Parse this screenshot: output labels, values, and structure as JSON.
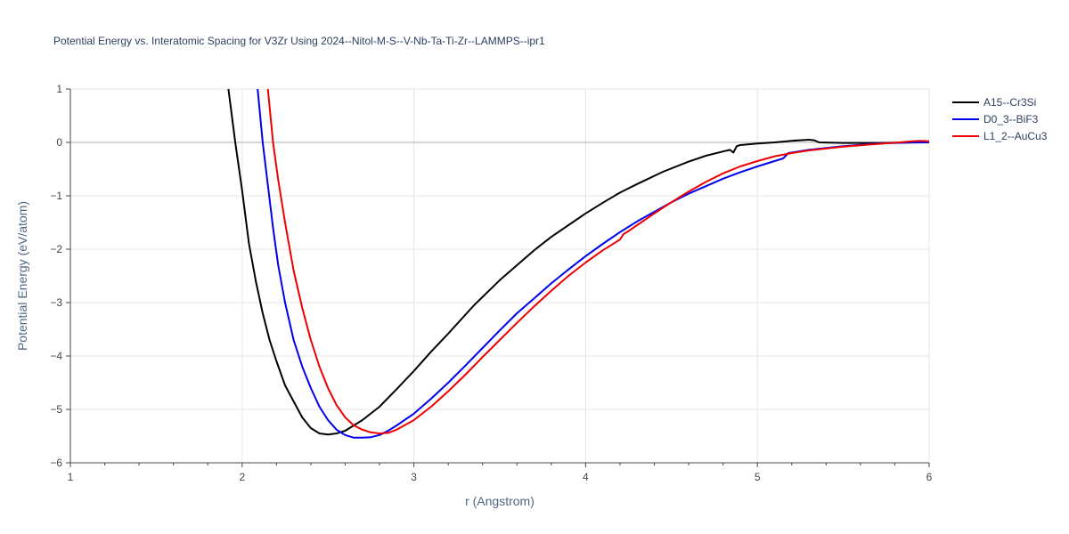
{
  "chart_data": {
    "type": "line",
    "title": "Potential Energy vs. Interatomic Spacing for V3Zr Using 2024--Nitol-M-S--V-Nb-Ta-Ti-Zr--LAMMPS--ipr1",
    "xlabel": "r (Angstrom)",
    "ylabel": "Potential Energy (eV/atom)",
    "xlim": [
      1,
      6
    ],
    "ylim": [
      -6,
      1
    ],
    "xticks": [
      1,
      2,
      3,
      4,
      5,
      6
    ],
    "xtick_labels": [
      "1",
      "2",
      "3",
      "4",
      "5",
      "6"
    ],
    "yticks": [
      -6,
      -5,
      -4,
      -3,
      -2,
      -1,
      0,
      1
    ],
    "ytick_labels": [
      "−6",
      "−5",
      "−4",
      "−3",
      "−2",
      "−1",
      "0",
      "1"
    ],
    "grid": true,
    "legend_position": "top-right",
    "series": [
      {
        "name": "A15--Cr3Si",
        "color": "#000000",
        "x": [
          1.92,
          1.96,
          2.0,
          2.04,
          2.08,
          2.12,
          2.16,
          2.2,
          2.25,
          2.3,
          2.35,
          2.4,
          2.45,
          2.5,
          2.55,
          2.6,
          2.7,
          2.8,
          2.9,
          3.0,
          3.1,
          3.2,
          3.35,
          3.5,
          3.6,
          3.7,
          3.8,
          3.9,
          4.0,
          4.1,
          4.2,
          4.3,
          4.45,
          4.6,
          4.7,
          4.8,
          4.84,
          4.86,
          4.88,
          4.9,
          5.0,
          5.1,
          5.2,
          5.3,
          5.33,
          5.36,
          5.5,
          5.7,
          6.0
        ],
        "y": [
          1.0,
          0.0,
          -0.9,
          -1.9,
          -2.6,
          -3.2,
          -3.7,
          -4.1,
          -4.55,
          -4.85,
          -5.15,
          -5.35,
          -5.45,
          -5.47,
          -5.45,
          -5.4,
          -5.2,
          -4.95,
          -4.62,
          -4.28,
          -3.92,
          -3.58,
          -3.05,
          -2.58,
          -2.3,
          -2.02,
          -1.77,
          -1.55,
          -1.33,
          -1.13,
          -0.94,
          -0.78,
          -0.55,
          -0.36,
          -0.25,
          -0.17,
          -0.14,
          -0.19,
          -0.07,
          -0.05,
          -0.02,
          0.0,
          0.03,
          0.05,
          0.04,
          0.0,
          -0.01,
          -0.01,
          0.0
        ]
      },
      {
        "name": "D0_3--BiF3",
        "color": "#0000ee",
        "x": [
          2.09,
          2.12,
          2.15,
          2.18,
          2.21,
          2.25,
          2.3,
          2.35,
          2.4,
          2.45,
          2.5,
          2.55,
          2.6,
          2.65,
          2.7,
          2.75,
          2.8,
          2.85,
          2.9,
          3.0,
          3.1,
          3.2,
          3.3,
          3.4,
          3.5,
          3.6,
          3.7,
          3.8,
          3.9,
          4.0,
          4.1,
          4.2,
          4.3,
          4.4,
          4.5,
          4.6,
          4.7,
          4.8,
          4.9,
          5.0,
          5.1,
          5.15,
          5.18,
          5.3,
          5.5,
          5.7,
          5.9,
          6.0
        ],
        "y": [
          1.0,
          0.0,
          -0.8,
          -1.6,
          -2.3,
          -3.0,
          -3.7,
          -4.2,
          -4.6,
          -4.95,
          -5.2,
          -5.38,
          -5.48,
          -5.53,
          -5.53,
          -5.52,
          -5.48,
          -5.4,
          -5.3,
          -5.08,
          -4.8,
          -4.5,
          -4.18,
          -3.85,
          -3.52,
          -3.2,
          -2.92,
          -2.64,
          -2.38,
          -2.13,
          -1.9,
          -1.68,
          -1.48,
          -1.3,
          -1.12,
          -0.96,
          -0.82,
          -0.68,
          -0.56,
          -0.45,
          -0.35,
          -0.3,
          -0.2,
          -0.14,
          -0.07,
          -0.02,
          0.0,
          0.0
        ]
      },
      {
        "name": "L1_2--AuCu3",
        "color": "#ee0000",
        "x": [
          2.15,
          2.18,
          2.21,
          2.25,
          2.3,
          2.35,
          2.4,
          2.45,
          2.5,
          2.55,
          2.6,
          2.65,
          2.7,
          2.75,
          2.8,
          2.85,
          2.9,
          3.0,
          3.1,
          3.2,
          3.3,
          3.4,
          3.5,
          3.6,
          3.7,
          3.8,
          3.9,
          4.0,
          4.1,
          4.2,
          4.22,
          4.25,
          4.3,
          4.4,
          4.5,
          4.6,
          4.7,
          4.8,
          4.9,
          5.0,
          5.1,
          5.2,
          5.3,
          5.5,
          5.7,
          5.9,
          5.95,
          6.0
        ],
        "y": [
          1.0,
          0.0,
          -0.7,
          -1.5,
          -2.4,
          -3.1,
          -3.7,
          -4.2,
          -4.6,
          -4.92,
          -5.15,
          -5.3,
          -5.38,
          -5.43,
          -5.45,
          -5.44,
          -5.38,
          -5.2,
          -4.95,
          -4.66,
          -4.35,
          -4.02,
          -3.7,
          -3.38,
          -3.07,
          -2.78,
          -2.5,
          -2.25,
          -2.02,
          -1.82,
          -1.72,
          -1.66,
          -1.55,
          -1.33,
          -1.12,
          -0.92,
          -0.74,
          -0.58,
          -0.45,
          -0.35,
          -0.26,
          -0.2,
          -0.15,
          -0.08,
          -0.03,
          0.02,
          0.03,
          0.02
        ]
      }
    ]
  }
}
